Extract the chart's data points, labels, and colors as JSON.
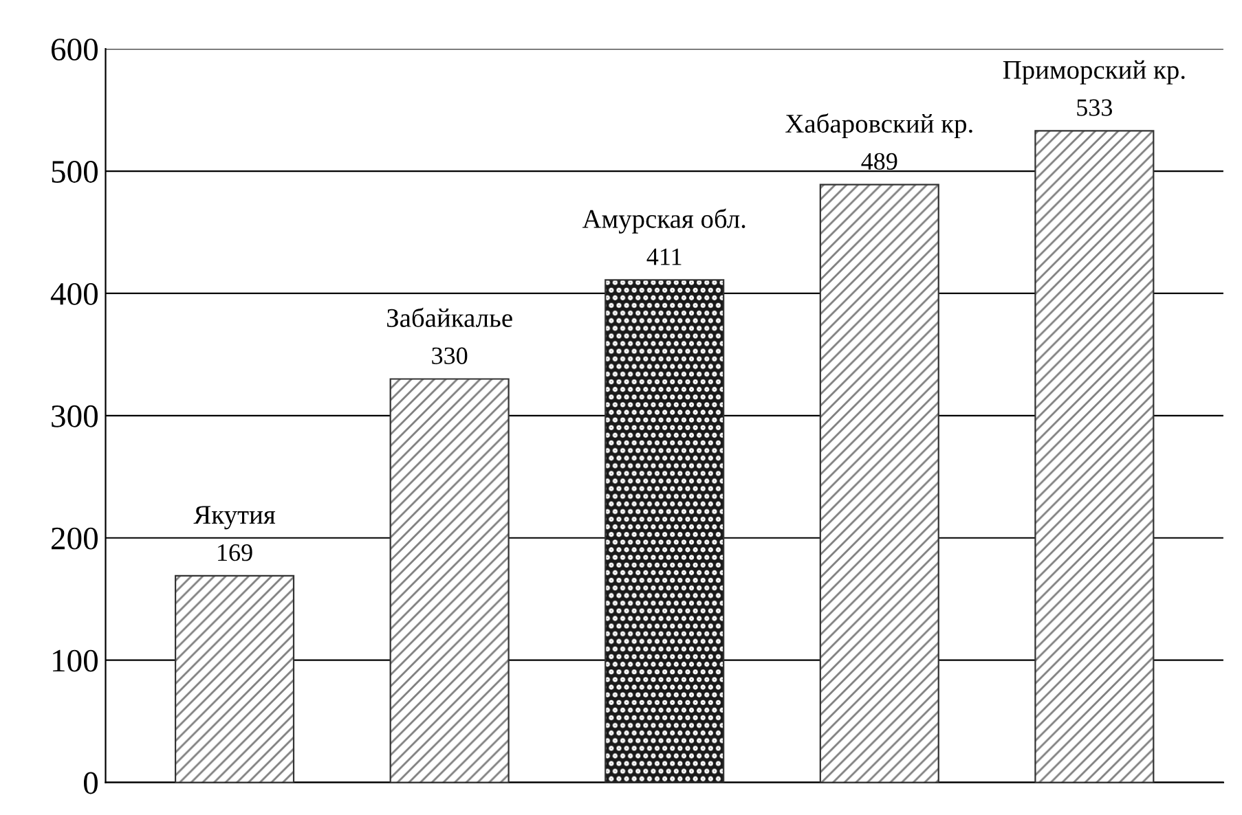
{
  "chart_data": {
    "type": "bar",
    "categories": [
      "Якутия",
      "Забайкалье",
      "Амурская обл.",
      "Хабаровский кр.",
      "Приморский кр."
    ],
    "values": [
      169,
      330,
      411,
      489,
      533
    ],
    "colors": [
      "#7f7f7f",
      "#7f7f7f",
      "#1a1a1a",
      "#7f7f7f",
      "#7f7f7f"
    ],
    "ylim": [
      0,
      600
    ],
    "yticks": [
      0,
      100,
      200,
      300,
      400,
      500,
      600
    ],
    "grid": "y",
    "data_labels": true,
    "tick_labels": "y"
  }
}
